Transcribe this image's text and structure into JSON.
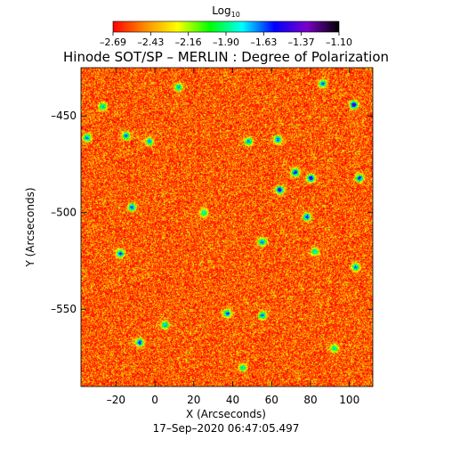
{
  "chart_data": {
    "type": "heatmap",
    "title": "Hinode SOT/SP – MERLIN : Degree of Polarization",
    "xlabel": "X (Arcseconds)",
    "ylabel": "Y (Arcseconds)",
    "timestamp": "17–Sep–2020 06:47:05.497",
    "colorbar": {
      "label": "Log",
      "label_subscript": "10",
      "ticks": [
        "–2.69",
        "–2.43",
        "–2.16",
        "–1.90",
        "–1.63",
        "–1.37",
        "–1.10"
      ],
      "range": [
        -2.69,
        -1.1
      ],
      "colors": [
        "#ff0000",
        "#ff8c00",
        "#ffff00",
        "#00ff00",
        "#00ffff",
        "#0000ff",
        "#7a00c8",
        "#000000"
      ]
    },
    "xlim": [
      -38,
      112
    ],
    "ylim": [
      -590,
      -425
    ],
    "x_ticks": [
      {
        "value": -20,
        "label": "–20"
      },
      {
        "value": 0,
        "label": "0"
      },
      {
        "value": 20,
        "label": "20"
      },
      {
        "value": 40,
        "label": "40"
      },
      {
        "value": 60,
        "label": "60"
      },
      {
        "value": 80,
        "label": "80"
      },
      {
        "value": 100,
        "label": "100"
      }
    ],
    "y_ticks": [
      {
        "value": -450,
        "label": "–450"
      },
      {
        "value": -500,
        "label": "–500"
      },
      {
        "value": -550,
        "label": "–550"
      }
    ],
    "background_value": -2.55,
    "features": [
      {
        "x": 102,
        "y": -444,
        "v": -1.3
      },
      {
        "x": 64,
        "y": -488,
        "v": -1.35
      },
      {
        "x": 80,
        "y": -482,
        "v": -1.3
      },
      {
        "x": 72,
        "y": -479,
        "v": -1.45
      },
      {
        "x": 105,
        "y": -482,
        "v": -1.5
      },
      {
        "x": 63,
        "y": -462,
        "v": -1.55
      },
      {
        "x": 48,
        "y": -463,
        "v": -1.6
      },
      {
        "x": -35,
        "y": -461,
        "v": -1.55
      },
      {
        "x": -15,
        "y": -460,
        "v": -1.6
      },
      {
        "x": -3,
        "y": -463,
        "v": -1.65
      },
      {
        "x": 12,
        "y": -435,
        "v": -1.7
      },
      {
        "x": 86,
        "y": -433,
        "v": -1.6
      },
      {
        "x": -27,
        "y": -445,
        "v": -1.7
      },
      {
        "x": -12,
        "y": -497,
        "v": -1.55
      },
      {
        "x": -18,
        "y": -521,
        "v": -1.5
      },
      {
        "x": 78,
        "y": -502,
        "v": -1.5
      },
      {
        "x": 55,
        "y": -515,
        "v": -1.6
      },
      {
        "x": 82,
        "y": -520,
        "v": -1.7
      },
      {
        "x": 37,
        "y": -552,
        "v": -1.55
      },
      {
        "x": 55,
        "y": -553,
        "v": -1.6
      },
      {
        "x": -8,
        "y": -567,
        "v": -1.5
      },
      {
        "x": 5,
        "y": -558,
        "v": -1.65
      },
      {
        "x": 103,
        "y": -528,
        "v": -1.6
      },
      {
        "x": 25,
        "y": -500,
        "v": -1.75
      },
      {
        "x": 92,
        "y": -570,
        "v": -1.8
      },
      {
        "x": 45,
        "y": -580,
        "v": -1.8
      }
    ]
  }
}
